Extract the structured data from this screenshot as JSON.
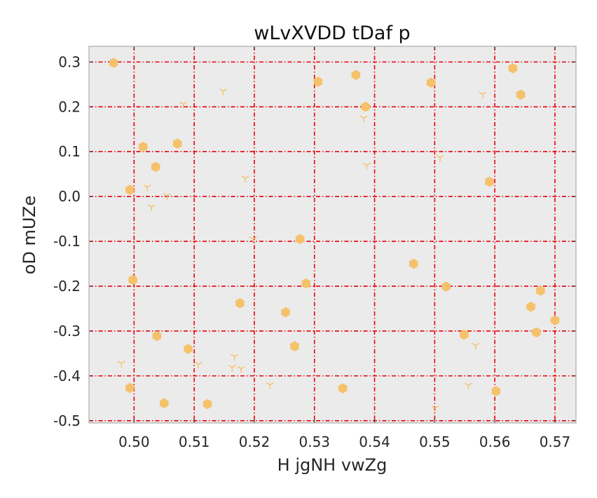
{
  "chart_data": {
    "type": "scatter",
    "title": "wLvXVDD tDaf p",
    "xlabel": "H  jgNH vwZg",
    "ylabel": "oD mUZe",
    "xlim": [
      0.4925,
      0.5735
    ],
    "ylim": [
      -0.505,
      0.335
    ],
    "x_ticks": [
      0.5,
      0.51,
      0.52,
      0.53,
      0.54,
      0.55,
      0.56,
      0.57
    ],
    "x_tick_labels": [
      "0.50",
      "0.51",
      "0.52",
      "0.53",
      "0.54",
      "0.55",
      "0.56",
      "0.57"
    ],
    "y_ticks": [
      0.3,
      0.2,
      0.1,
      0.0,
      -0.1,
      -0.2,
      -0.3,
      -0.4,
      -0.5
    ],
    "y_tick_labels": [
      "0.3",
      "0.2",
      "0.1",
      "0.0",
      "-0.1",
      "-0.2",
      "-0.3",
      "-0.4",
      "-0.5"
    ],
    "grid": true,
    "colors": {
      "marker": "#f5c26b",
      "grid": "#e8000b",
      "background": "#ebebeb",
      "frame": "#bbbbbb"
    },
    "series": [
      {
        "marker": "hexagon",
        "points": [
          [
            0.4966,
            0.298
          ],
          [
            0.4993,
            0.015
          ],
          [
            0.4993,
            -0.427
          ],
          [
            0.4998,
            -0.186
          ],
          [
            0.5015,
            0.111
          ],
          [
            0.5036,
            0.066
          ],
          [
            0.5038,
            -0.311
          ],
          [
            0.505,
            -0.461
          ],
          [
            0.5072,
            0.118
          ],
          [
            0.509,
            -0.34
          ],
          [
            0.5122,
            -0.463
          ],
          [
            0.5176,
            -0.238
          ],
          [
            0.5252,
            -0.258
          ],
          [
            0.5267,
            -0.334
          ],
          [
            0.5276,
            -0.095
          ],
          [
            0.5286,
            -0.194
          ],
          [
            0.5306,
            0.256
          ],
          [
            0.5347,
            -0.428
          ],
          [
            0.5369,
            0.271
          ],
          [
            0.5385,
            0.2
          ],
          [
            0.5465,
            -0.15
          ],
          [
            0.5494,
            0.254
          ],
          [
            0.5519,
            -0.201
          ],
          [
            0.5549,
            -0.308
          ],
          [
            0.5591,
            0.033
          ],
          [
            0.5602,
            -0.434
          ],
          [
            0.563,
            0.286
          ],
          [
            0.5643,
            0.227
          ],
          [
            0.566,
            -0.246
          ],
          [
            0.5669,
            -0.303
          ],
          [
            0.5676,
            -0.21
          ],
          [
            0.57,
            -0.276
          ]
        ]
      },
      {
        "marker": "tri_down",
        "points": [
          [
            0.4979,
            -0.372
          ],
          [
            0.5022,
            0.021
          ],
          [
            0.5029,
            -0.023
          ],
          [
            0.5055,
            0.002
          ],
          [
            0.5082,
            0.206
          ],
          [
            0.5107,
            -0.374
          ],
          [
            0.5148,
            0.235
          ],
          [
            0.5163,
            -0.381
          ],
          [
            0.5167,
            -0.357
          ],
          [
            0.5178,
            -0.384
          ],
          [
            0.5185,
            0.041
          ],
          [
            0.5198,
            -0.095
          ],
          [
            0.5226,
            -0.42
          ],
          [
            0.5382,
            0.175
          ],
          [
            0.5387,
            0.07
          ],
          [
            0.5509,
            0.087
          ],
          [
            0.5501,
            -0.472
          ],
          [
            0.5556,
            -0.421
          ],
          [
            0.5568,
            -0.332
          ],
          [
            0.558,
            0.228
          ]
        ]
      }
    ]
  }
}
